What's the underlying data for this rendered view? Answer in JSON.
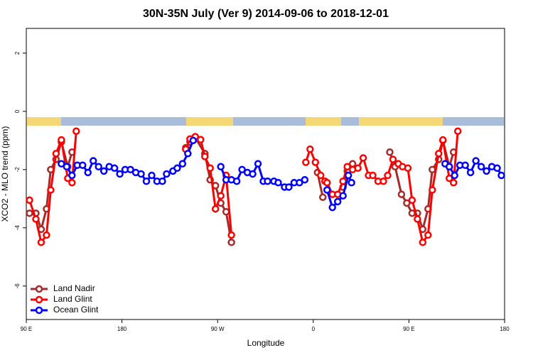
{
  "chart_data": {
    "type": "line",
    "title": "30N-35N July (Ver 9)   2014-09-06 to 2018-12-01",
    "xlabel": "Longitude",
    "ylabel": "XCO2 - MLO trend (ppm)",
    "xlim": [
      90,
      540
    ],
    "ylim": [
      -7.15,
      2.85
    ],
    "xticks": [
      {
        "value": 90,
        "label": "90 E"
      },
      180,
      {
        "value": 270,
        "label": "90 W"
      },
      {
        "value": 360,
        "label": "0"
      },
      {
        "value": 450,
        "label": "90 E"
      },
      {
        "value": 540,
        "label": "180"
      }
    ],
    "yticks": [
      -6,
      -4,
      -2,
      0,
      2
    ],
    "legend": "bottom-left",
    "series": [
      {
        "name": "Land Nadir",
        "color": "#a52a2a",
        "x": [
          93,
          99,
          104,
          109,
          113,
          118,
          123,
          129,
          133,
          180,
          240,
          244,
          249,
          258,
          263,
          268,
          273,
          278,
          283,
          320,
          364,
          369,
          380,
          388,
          392,
          397,
          410,
          432,
          437,
          443,
          448,
          453,
          458,
          463,
          468,
          472,
          478,
          482,
          488,
          492
        ],
        "values": [
          -3.5,
          -3.5,
          -4.05,
          -3.35,
          -2.0,
          -1.65,
          -1.05,
          -1.9,
          -1.4,
          null,
          -1.25,
          -1.05,
          -0.9,
          -1.45,
          -2.35,
          -2.55,
          -3.15,
          -3.45,
          -4.5,
          null,
          -2.1,
          -2.95,
          null,
          -2.6,
          -2.05,
          -1.8,
          null,
          -1.4,
          -1.9,
          -2.85,
          -3.15,
          -3.5,
          -3.5,
          -4.05,
          -3.35,
          -2.0,
          -1.65,
          -1.0,
          -1.9,
          -1.4
        ]
      },
      {
        "name": "Land Glint",
        "color": "#ff0000",
        "x": [
          93,
          99,
          104,
          109,
          113,
          118,
          123,
          129,
          133,
          137,
          190,
          240,
          244,
          249,
          254,
          258,
          263,
          268,
          273,
          278,
          283,
          320,
          353,
          357,
          362,
          367,
          371,
          373,
          378,
          383,
          388,
          392,
          397,
          402,
          407,
          412,
          416,
          421,
          426,
          430,
          435,
          440,
          444,
          449,
          453,
          458,
          463,
          468,
          472,
          478,
          482,
          488,
          492,
          496
        ],
        "values": [
          -3.05,
          -3.7,
          -4.5,
          -4.25,
          -2.7,
          -1.45,
          -0.98,
          -2.3,
          -2.45,
          -0.68,
          null,
          -1.3,
          -0.95,
          -0.87,
          -0.97,
          -1.55,
          -1.95,
          -3.35,
          -2.9,
          -2.2,
          -4.25,
          null,
          -1.75,
          -1.3,
          -1.75,
          -2.2,
          -2.4,
          -2.45,
          -2.85,
          -2.85,
          -2.4,
          -1.9,
          -2.0,
          -1.95,
          -1.6,
          -2.2,
          -2.2,
          -2.4,
          -2.4,
          -2.2,
          -1.65,
          -1.8,
          -1.9,
          -1.95,
          -3.05,
          -3.7,
          -4.5,
          -4.25,
          -2.7,
          -1.45,
          -0.98,
          -2.3,
          -2.45,
          -0.68
        ]
      },
      {
        "name": "Ocean Glint",
        "color": "#0000ff",
        "x": [
          123,
          128,
          133,
          138,
          143,
          148,
          153,
          158,
          163,
          168,
          173,
          178,
          183,
          188,
          193,
          198,
          203,
          208,
          213,
          218,
          222,
          228,
          232,
          237,
          242,
          247,
          260,
          273,
          278,
          283,
          288,
          293,
          298,
          303,
          308,
          313,
          317,
          323,
          327,
          333,
          337,
          342,
          347,
          352,
          362,
          373,
          378,
          383,
          388,
          393,
          396,
          440,
          484,
          488,
          493,
          498,
          503,
          508,
          513,
          518,
          523,
          528,
          533,
          537
        ],
        "values": [
          -1.8,
          -1.9,
          -2.2,
          -1.85,
          -1.85,
          -2.1,
          -1.7,
          -1.9,
          -2.05,
          -1.9,
          -1.95,
          -2.15,
          -2.0,
          -2.0,
          -2.1,
          -2.15,
          -2.4,
          -2.2,
          -2.4,
          -2.4,
          -2.15,
          -2.05,
          -1.95,
          -1.8,
          -1.45,
          -1.0,
          null,
          -1.9,
          -2.35,
          -2.35,
          -2.4,
          -2.0,
          -2.1,
          -2.15,
          -1.8,
          -2.4,
          -2.4,
          -2.4,
          -2.45,
          -2.6,
          -2.6,
          -2.45,
          -2.45,
          -2.35,
          null,
          -2.7,
          -3.3,
          -3.1,
          -2.9,
          -2.2,
          -2.45,
          null,
          -1.8,
          -1.9,
          -2.2,
          -1.85,
          -1.85,
          -2.1,
          -1.7,
          -1.9,
          -2.05,
          -1.9,
          -1.95,
          -2.2
        ]
      }
    ]
  }
}
